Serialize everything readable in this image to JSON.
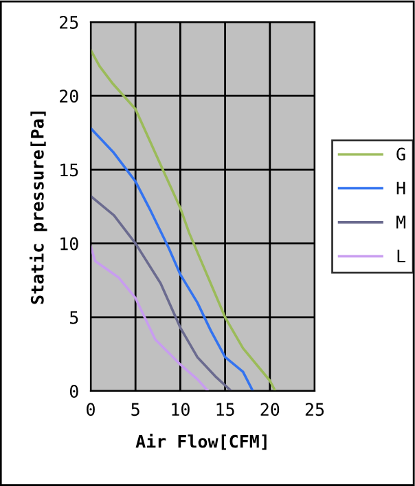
{
  "chart_data": {
    "type": "line",
    "xlabel": "Air Flow[CFM]",
    "ylabel": "Static pressure[Pa]",
    "xlim": [
      0,
      25
    ],
    "ylim": [
      0,
      25
    ],
    "xticks": [
      0,
      5,
      10,
      15,
      20,
      25
    ],
    "yticks": [
      0,
      5,
      10,
      15,
      20,
      25
    ],
    "grid": true,
    "legend": "right",
    "marker": "none",
    "series": [
      {
        "name": "G",
        "color": "#9bbb59",
        "x": [
          0,
          1,
          2.5,
          5,
          8.2,
          10,
          11,
          15,
          17,
          20,
          20.6
        ],
        "values": [
          23.1,
          22,
          20.8,
          19.1,
          14.8,
          12.4,
          10.7,
          5.0,
          2.9,
          0.7,
          0
        ]
      },
      {
        "name": "H",
        "color": "#3373f0",
        "x": [
          0,
          2.5,
          5,
          6.7,
          8.7,
          10,
          11.9,
          13.4,
          15,
          17,
          18.1
        ],
        "values": [
          17.8,
          16.2,
          14.2,
          12.2,
          9.7,
          7.9,
          6.0,
          4.1,
          2.3,
          1.3,
          0
        ]
      },
      {
        "name": "M",
        "color": "#6b6b8f",
        "x": [
          0,
          2.6,
          5,
          7.8,
          10,
          11.9,
          13.9,
          15.7
        ],
        "values": [
          13.2,
          11.9,
          10,
          7.3,
          4.3,
          2.3,
          1.0,
          0
        ]
      },
      {
        "name": "L",
        "color": "#c89cf0",
        "x": [
          0,
          0.5,
          3.1,
          5,
          7.2,
          10,
          11.9,
          13.1
        ],
        "values": [
          9.8,
          8.8,
          7.7,
          6.3,
          3.5,
          1.8,
          0.8,
          0
        ]
      }
    ]
  }
}
